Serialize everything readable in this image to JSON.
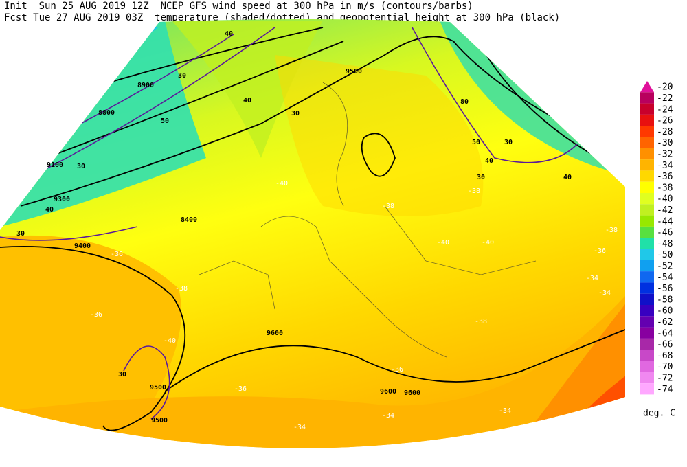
{
  "header": {
    "line1": "Init  Sun 25 AUG 2019 12Z  NCEP GFS wind speed at 300 hPa in m/s (contours/barbs)",
    "line2": "Fcst Tue 27 AUG 2019 03Z  temperature (shaded/dotted) and geopotential height at 300 hPa (black)"
  },
  "colorbar": {
    "unit": "deg. C",
    "items": [
      {
        "value": -20,
        "color": "#e0109a"
      },
      {
        "value": -22,
        "color": "#b8005e"
      },
      {
        "value": -24,
        "color": "#c8002c"
      },
      {
        "value": -26,
        "color": "#e81010"
      },
      {
        "value": -28,
        "color": "#ff3800"
      },
      {
        "value": -30,
        "color": "#ff6400"
      },
      {
        "value": -32,
        "color": "#ff9000"
      },
      {
        "value": -34,
        "color": "#ffb400"
      },
      {
        "value": -36,
        "color": "#ffd800"
      },
      {
        "value": -38,
        "color": "#ffff00"
      },
      {
        "value": -40,
        "color": "#e0ff20"
      },
      {
        "value": -42,
        "color": "#c0f020"
      },
      {
        "value": -44,
        "color": "#98e800"
      },
      {
        "value": -46,
        "color": "#58e040"
      },
      {
        "value": -48,
        "color": "#20e0a8"
      },
      {
        "value": -50,
        "color": "#20c8e8"
      },
      {
        "value": -52,
        "color": "#10a0f0"
      },
      {
        "value": -54,
        "color": "#1068f0"
      },
      {
        "value": -56,
        "color": "#0030e0"
      },
      {
        "value": -58,
        "color": "#1010c8"
      },
      {
        "value": -60,
        "color": "#3800c0"
      },
      {
        "value": -62,
        "color": "#6400b0"
      },
      {
        "value": -64,
        "color": "#8800a0"
      },
      {
        "value": -66,
        "color": "#a828a8"
      },
      {
        "value": -68,
        "color": "#c848c8"
      },
      {
        "value": -70,
        "color": "#e068e0"
      },
      {
        "value": -72,
        "color": "#f088f0"
      },
      {
        "value": -74,
        "color": "#ffa8ff"
      }
    ]
  },
  "map": {
    "labels": [
      "40",
      "30",
      "8900",
      "8800",
      "30",
      "40",
      "50",
      "30",
      "9100",
      "9300",
      "40",
      "30",
      "9500",
      "9400",
      "8400",
      "9600",
      "9500",
      "80",
      "50",
      "30",
      "40",
      "30",
      "40",
      "-38",
      "-40",
      "-40",
      "-40",
      "-38",
      "-36",
      "-34",
      "-38",
      "-36",
      "-40",
      "-38",
      "9600",
      "-36",
      "-36",
      "-34",
      "-34",
      "9600",
      "9500",
      "30",
      "-38",
      "-34",
      "-36",
      "-34"
    ]
  }
}
